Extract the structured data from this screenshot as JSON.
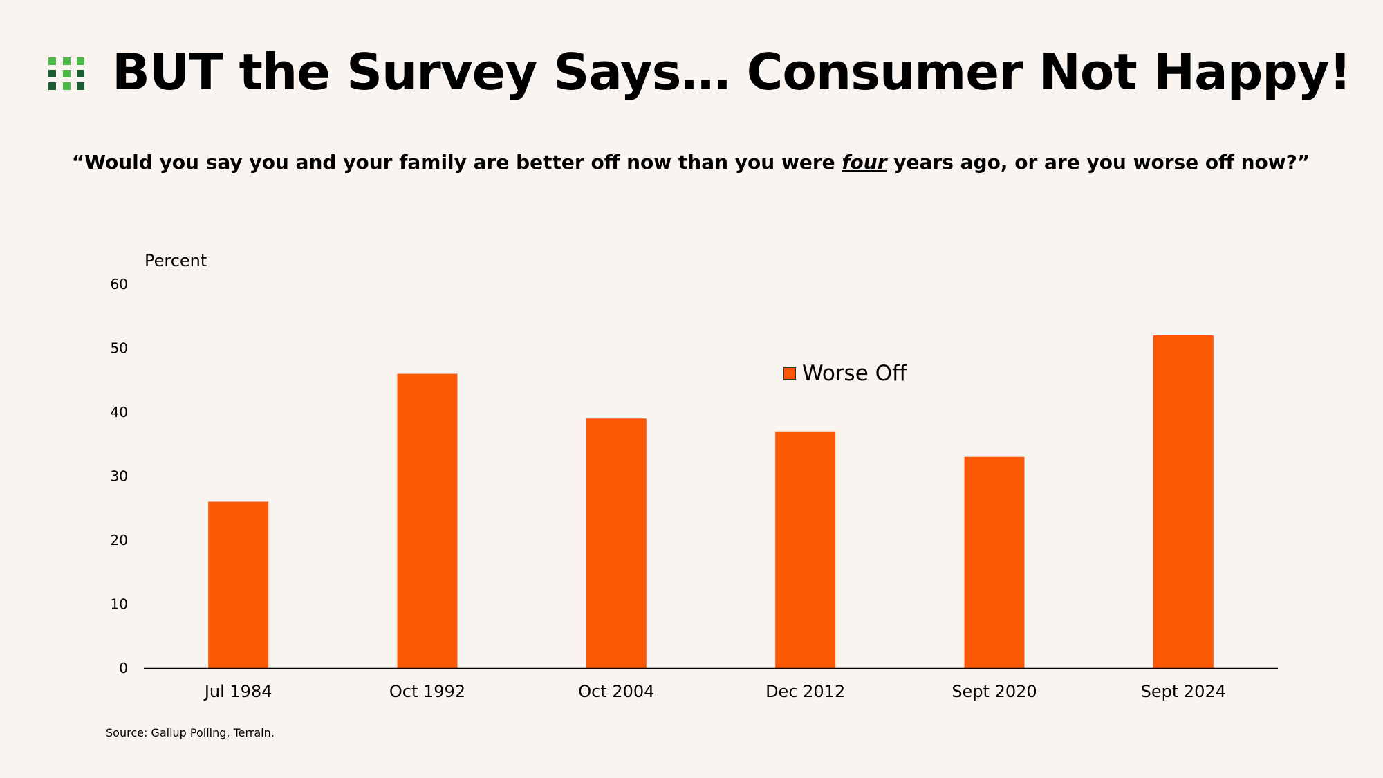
{
  "header": {
    "title": "BUT the Survey Says… Consumer Not Happy!",
    "logo_colors": {
      "light": "#4bb848",
      "dark": "#1a5e30"
    }
  },
  "chart_data": {
    "type": "bar",
    "subtitle_part1": "“Would you say you and your family are better off now than you were ",
    "subtitle_emphasis": "four",
    "subtitle_part2": " years ago, or are you worse off now?”",
    "ylabel": "Percent",
    "xlabel": "",
    "categories": [
      "Jul 1984",
      "Oct 1992",
      "Oct 2004",
      "Dec 2012",
      "Sept 2020",
      "Sept 2024"
    ],
    "series": [
      {
        "name": "Worse Off",
        "values": [
          26,
          46,
          39,
          37,
          33,
          52
        ],
        "color": "#fa5805"
      }
    ],
    "ylim": [
      0,
      60
    ],
    "yticks": [
      "0",
      "10",
      "20",
      "30",
      "40",
      "50",
      "60"
    ],
    "grid": false,
    "legend": "center"
  },
  "footer": {
    "source": "Source: Gallup Polling, Terrain."
  }
}
